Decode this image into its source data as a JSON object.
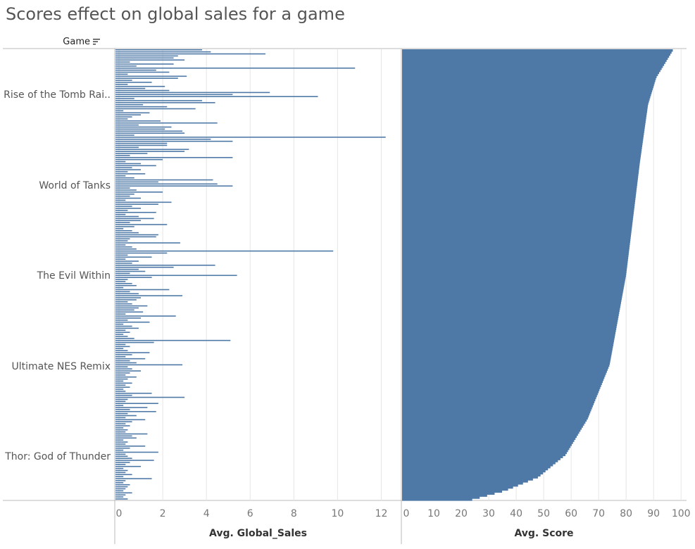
{
  "title": "Scores effect on global sales for a game",
  "header": {
    "field_label": "Game",
    "sort_icon": "sort-descending-icon"
  },
  "colors": {
    "bar": "#4e79a7",
    "grid": "#e6e6e6",
    "axis": "#bbbbbb"
  },
  "chart_data": {
    "type": "bar",
    "orientation": "horizontal",
    "sorted_by": "Avg. Score (descending)",
    "category_field": "Game",
    "visible_category_labels": [
      "Rise of the Tomb Rai..",
      "World of Tanks",
      "The Evil Within",
      "Ultimate NES Remix",
      "Thor: God of Thunder"
    ],
    "panels": [
      {
        "measure": "Avg. Global_Sales",
        "xlabel": "Avg. Global_Sales",
        "xlim": [
          0,
          12.5
        ],
        "ticks": [
          0,
          2,
          4,
          6,
          8,
          10,
          12
        ],
        "values": [
          3.8,
          4.2,
          6.7,
          2.7,
          2.5,
          3.0,
          0.5,
          2.5,
          0.8,
          10.8,
          1.7,
          2.3,
          0.4,
          3.1,
          2.7,
          0.6,
          1.5,
          0.4,
          2.1,
          1.2,
          2.3,
          6.9,
          5.2,
          9.1,
          0.7,
          3.8,
          4.4,
          1.1,
          2.2,
          3.5,
          0.2,
          1.4,
          1.0,
          0.6,
          0.4,
          1.9,
          4.5,
          0.9,
          2.4,
          2.1,
          2.9,
          3.0,
          0.7,
          12.2,
          4.2,
          5.2,
          2.2,
          2.2,
          0.9,
          3.2,
          3.0,
          1.3,
          0.5,
          5.2,
          2.0,
          0.3,
          1.0,
          1.7,
          0.6,
          1.0,
          0.4,
          1.2,
          0.3,
          0.7,
          4.3,
          1.8,
          4.5,
          5.2,
          0.5,
          0.8,
          2.0,
          0.7,
          0.5,
          1.0,
          0.3,
          2.4,
          1.8,
          0.6,
          1.0,
          0.4,
          1.7,
          0.3,
          0.9,
          1.6,
          1.0,
          0.5,
          2.2,
          0.7,
          0.2,
          0.6,
          0.9,
          1.8,
          1.7,
          0.5,
          0.4,
          2.8,
          0.3,
          0.6,
          0.8,
          9.8,
          2.2,
          0.4,
          1.5,
          0.3,
          0.9,
          0.6,
          4.4,
          2.5,
          0.9,
          1.2,
          0.5,
          5.4,
          1.5,
          0.4,
          0.3,
          0.6,
          0.8,
          0.2,
          2.3,
          0.5,
          0.9,
          2.9,
          1.0,
          0.8,
          0.4,
          0.6,
          1.3,
          0.9,
          0.7,
          1.1,
          0.3,
          2.6,
          1.0,
          0.4,
          1.4,
          0.2,
          0.6,
          0.9,
          0.3,
          0.5,
          0.2,
          0.4,
          0.7,
          5.1,
          1.6,
          0.3,
          0.5,
          0.2,
          0.4,
          1.4,
          0.6,
          0.3,
          1.2,
          0.5,
          0.8,
          2.9,
          0.4,
          0.6,
          1.0,
          0.5,
          0.3,
          0.8,
          0.4,
          0.2,
          0.6,
          0.3,
          0.5,
          0.2,
          0.3,
          1.5,
          0.6,
          3.0,
          0.4,
          0.3,
          1.8,
          0.2,
          1.3,
          0.5,
          1.7,
          0.4,
          0.8,
          0.3,
          1.2,
          0.6,
          0.3,
          0.5,
          0.2,
          0.4,
          0.3,
          1.3,
          0.6,
          0.8,
          0.2,
          0.4,
          0.3,
          1.2,
          0.5,
          0.2,
          1.8,
          0.3,
          0.4,
          0.6,
          1.6,
          0.5,
          0.3,
          1.0,
          0.2,
          0.4,
          0.3,
          0.6,
          0.2,
          1.5,
          0.3,
          0.2,
          0.5,
          0.4,
          0.3,
          0.2,
          0.6,
          0.3,
          0.2,
          0.4
        ]
      },
      {
        "measure": "Avg. Score",
        "xlabel": "Avg. Score",
        "xlim": [
          0,
          102
        ],
        "ticks": [
          0,
          10,
          20,
          30,
          40,
          50,
          60,
          70,
          80,
          90,
          100
        ],
        "score_curve": {
          "max": 97,
          "min": 24,
          "profile_breakpoints": [
            [
              0,
              97
            ],
            [
              0.02,
              95
            ],
            [
              0.06,
              91
            ],
            [
              0.12,
              88
            ],
            [
              0.25,
              85
            ],
            [
              0.5,
              80
            ],
            [
              0.7,
              74
            ],
            [
              0.82,
              66
            ],
            [
              0.9,
              58
            ],
            [
              0.95,
              48
            ],
            [
              0.98,
              36
            ],
            [
              1.0,
              24
            ]
          ]
        }
      }
    ]
  }
}
